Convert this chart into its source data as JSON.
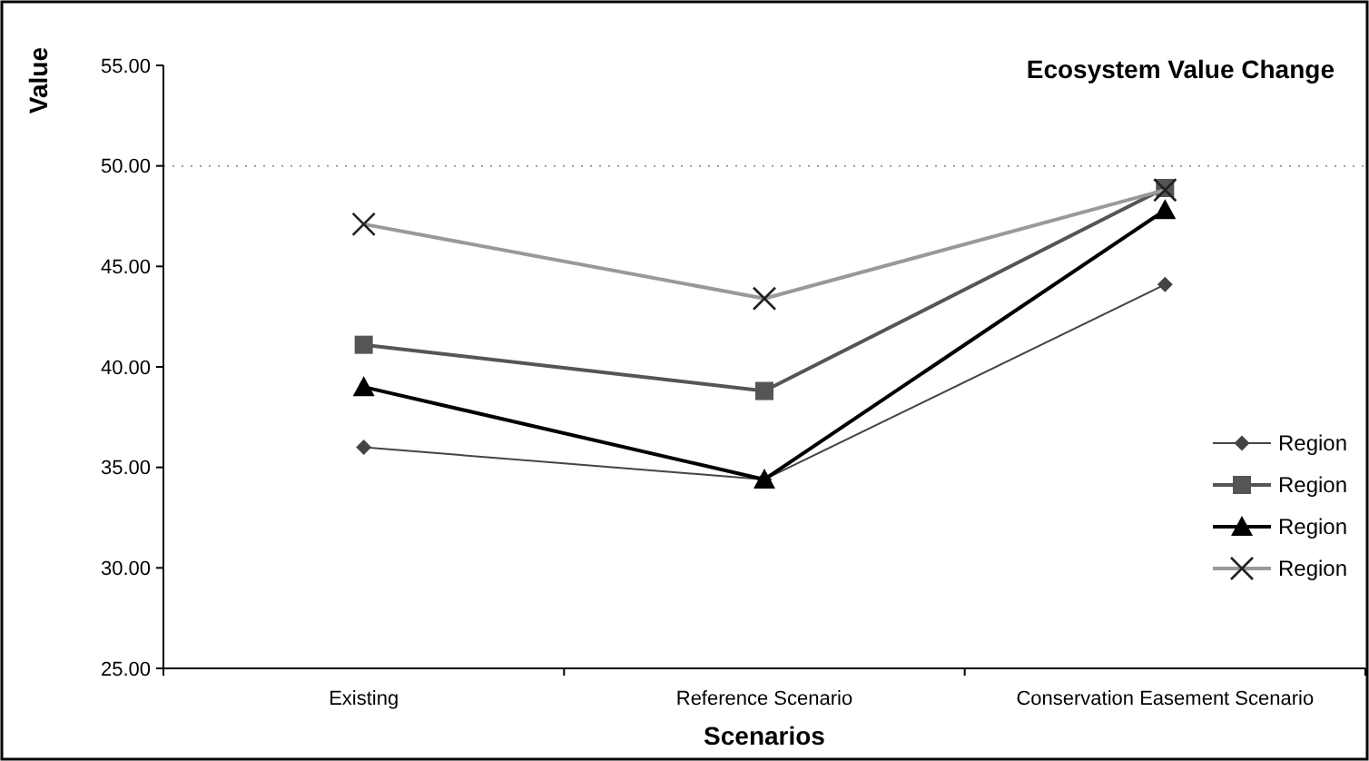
{
  "chart_data": {
    "type": "line",
    "title": "Ecosystem Value Change",
    "xlabel": "Scenarios",
    "ylabel": "Value",
    "categories": [
      "Existing",
      "Reference Scenario",
      "Conservation Easement Scenario"
    ],
    "series": [
      {
        "name": "Region",
        "color": "#444444",
        "marker": "diamond",
        "values": [
          36.0,
          34.4,
          44.1
        ]
      },
      {
        "name": "Region",
        "color": "#555555",
        "marker": "square",
        "values": [
          41.1,
          38.8,
          48.9
        ]
      },
      {
        "name": "Region",
        "color": "#000000",
        "marker": "triangle",
        "values": [
          39.0,
          34.4,
          47.8
        ]
      },
      {
        "name": "Region",
        "color": "#999999",
        "marker": "cross",
        "values": [
          47.1,
          43.4,
          48.8
        ]
      }
    ],
    "ylim": [
      25,
      55
    ],
    "yticks": [
      {
        "value": 25,
        "label": "25.00"
      },
      {
        "value": 30,
        "label": "30.00"
      },
      {
        "value": 35,
        "label": "35.00"
      },
      {
        "value": 40,
        "label": "40.00"
      },
      {
        "value": 45,
        "label": "45.00"
      },
      {
        "value": 50,
        "label": "50.00"
      },
      {
        "value": 55,
        "label": "55.00"
      }
    ],
    "ref_lines": [
      {
        "axis": "y",
        "value": 50,
        "color": "#999999",
        "line_style": "dotted"
      }
    ],
    "legend": "right"
  }
}
